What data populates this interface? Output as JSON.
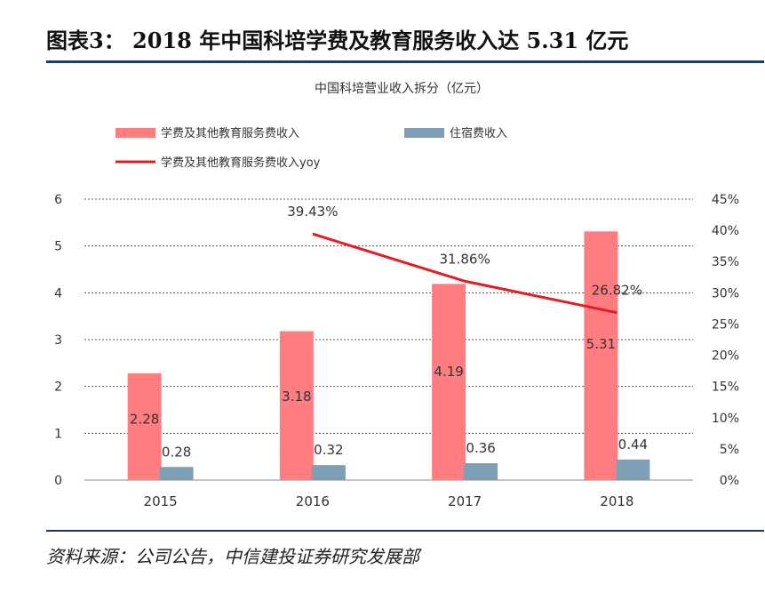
{
  "header": {
    "title": "图表3：  2018 年中国科培学费及教育服务收入达 5.31 亿元"
  },
  "source": "资料来源：公司公告，中信建投证券研究发展部",
  "chart_data": {
    "type": "bar",
    "title": "中国科培营业收入拆分（亿元）",
    "categories": [
      "2015",
      "2016",
      "2017",
      "2018"
    ],
    "series": [
      {
        "name": "学费及其他教育服务费收入",
        "type": "bar",
        "axis": "left",
        "color": "#ff7c80",
        "values": [
          2.28,
          3.18,
          4.19,
          5.31
        ],
        "labels": [
          "2.28",
          "3.18",
          "4.19",
          "5.31"
        ]
      },
      {
        "name": "住宿费收入",
        "type": "bar",
        "axis": "left",
        "color": "#7f9fb6",
        "values": [
          0.28,
          0.32,
          0.36,
          0.44
        ],
        "labels": [
          "0.28",
          "0.32",
          "0.36",
          "0.44"
        ]
      },
      {
        "name": "学费及其他教育服务费收入yoy",
        "type": "line",
        "axis": "right",
        "color": "#e21d24",
        "values": [
          null,
          39.43,
          31.86,
          26.82
        ],
        "labels": [
          "",
          "39.43%",
          "31.86%",
          "26.82%"
        ]
      }
    ],
    "y_left": {
      "min": 0,
      "max": 6,
      "ticks": [
        "0",
        "1",
        "2",
        "3",
        "4",
        "5",
        "6"
      ]
    },
    "y_right": {
      "min": 0,
      "max": 45,
      "ticks": [
        "0%",
        "5%",
        "10%",
        "15%",
        "20%",
        "25%",
        "30%",
        "35%",
        "40%",
        "45%"
      ]
    },
    "grid": "dotted-horizontal",
    "legend_position": "top-left"
  }
}
